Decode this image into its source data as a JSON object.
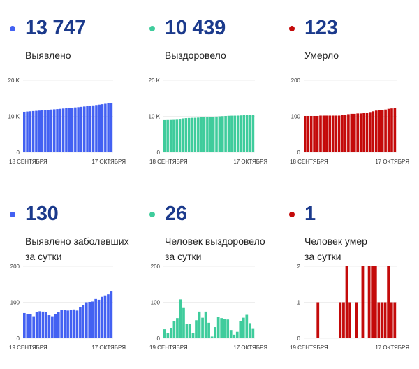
{
  "cards": [
    {
      "value": "13 747",
      "label": [
        "Выявлено"
      ],
      "color": "#4361f2"
    },
    {
      "value": "10 439",
      "label": [
        "Выздоровело"
      ],
      "color": "#3fcc9c"
    },
    {
      "value": "123",
      "label": [
        "Умерло"
      ],
      "color": "#c40a0a"
    },
    {
      "value": "130",
      "label": [
        "Выявлено заболевших",
        "за сутки"
      ],
      "color": "#4361f2"
    },
    {
      "value": "26",
      "label": [
        "Человек выздоровело",
        "за сутки"
      ],
      "color": "#3fcc9c"
    },
    {
      "value": "1",
      "label": [
        "Человек умер",
        "за сутки"
      ],
      "color": "#c40a0a"
    }
  ],
  "chart_data": [
    {
      "type": "bar",
      "x_start": "18 СЕНТЯБРЯ",
      "x_end": "17 ОКТЯБРЯ",
      "ylim": [
        0,
        20000
      ],
      "yticks": [
        "0",
        "10 K",
        "20 K"
      ],
      "ytick_values": [
        0,
        10000,
        20000
      ],
      "grid": true,
      "color": "#4361f2",
      "values": [
        11272,
        11342,
        11409,
        11475,
        11536,
        11608,
        11683,
        11757,
        11830,
        11894,
        11955,
        12022,
        12094,
        12172,
        12251,
        12328,
        12406,
        12486,
        12563,
        12649,
        12742,
        12842,
        12943,
        13045,
        13154,
        13261,
        13376,
        13495,
        13617,
        13747
      ]
    },
    {
      "type": "bar",
      "x_start": "18 СЕНТЯБРЯ",
      "x_end": "17 ОКТЯБРЯ",
      "ylim": [
        0,
        20000
      ],
      "yticks": [
        "0",
        "10 K",
        "20 K"
      ],
      "ytick_values": [
        0,
        10000,
        20000
      ],
      "grid": true,
      "color": "#3fcc9c",
      "values": [
        9138,
        9163,
        9178,
        9206,
        9254,
        9310,
        9418,
        9502,
        9542,
        9582,
        9596,
        9646,
        9720,
        9777,
        9851,
        9894,
        9899,
        9930,
        9990,
        10046,
        10099,
        10151,
        10174,
        10184,
        10202,
        10249,
        10306,
        10371,
        10413,
        10439
      ]
    },
    {
      "type": "bar",
      "x_start": "18 СЕНТЯБРЯ",
      "x_end": "17 ОКТЯБРЯ",
      "ylim": [
        0,
        200
      ],
      "yticks": [
        "0",
        "100",
        "200"
      ],
      "ytick_values": [
        0,
        100,
        200
      ],
      "grid": true,
      "color": "#c40a0a",
      "values": [
        101,
        101,
        101,
        101,
        101,
        102,
        102,
        102,
        102,
        102,
        102,
        102,
        103,
        104,
        106,
        107,
        107,
        108,
        108,
        110,
        110,
        112,
        114,
        116,
        117,
        118,
        119,
        121,
        122,
        123
      ]
    },
    {
      "type": "bar",
      "x_start": "19 СЕНТЯБРЯ",
      "x_end": "17 ОКТЯБРЯ",
      "ylim": [
        0,
        200
      ],
      "yticks": [
        "0",
        "100",
        "200"
      ],
      "ytick_values": [
        0,
        100,
        200
      ],
      "grid": true,
      "color": "#4361f2",
      "values": [
        70,
        67,
        66,
        61,
        72,
        75,
        74,
        73,
        64,
        61,
        67,
        72,
        78,
        79,
        77,
        78,
        80,
        77,
        86,
        93,
        100,
        101,
        102,
        109,
        107,
        115,
        119,
        122,
        130
      ]
    },
    {
      "type": "bar",
      "x_start": "19 СЕНТЯБРЯ",
      "x_end": "17 ОКТЯБРЯ",
      "ylim": [
        0,
        200
      ],
      "yticks": [
        "0",
        "100",
        "200"
      ],
      "ytick_values": [
        0,
        100,
        200
      ],
      "grid": true,
      "color": "#3fcc9c",
      "values": [
        25,
        15,
        28,
        48,
        56,
        108,
        84,
        40,
        40,
        14,
        50,
        74,
        57,
        74,
        43,
        5,
        31,
        60,
        56,
        53,
        52,
        23,
        10,
        18,
        47,
        57,
        65,
        42,
        26
      ]
    },
    {
      "type": "bar",
      "x_start": "19 СЕНТЯБРЯ",
      "x_end": "17 ОКТЯБРЯ",
      "ylim": [
        0,
        2
      ],
      "yticks": [
        "0",
        "1",
        "2"
      ],
      "ytick_values": [
        0,
        1,
        2
      ],
      "grid": true,
      "color": "#c40a0a",
      "values": [
        0,
        0,
        0,
        0,
        1,
        0,
        0,
        0,
        0,
        0,
        0,
        1,
        1,
        2,
        1,
        0,
        1,
        0,
        2,
        0,
        2,
        2,
        2,
        1,
        1,
        1,
        2,
        1,
        1
      ]
    }
  ]
}
